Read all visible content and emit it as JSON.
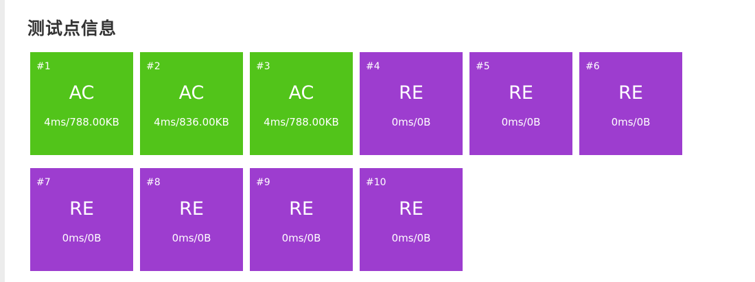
{
  "title": "测试点信息",
  "colors": {
    "AC": "#52c41a",
    "RE": "#9d3dcf"
  },
  "cases": [
    {
      "num": "#1",
      "status": "AC",
      "info": "4ms/788.00KB"
    },
    {
      "num": "#2",
      "status": "AC",
      "info": "4ms/836.00KB"
    },
    {
      "num": "#3",
      "status": "AC",
      "info": "4ms/788.00KB"
    },
    {
      "num": "#4",
      "status": "RE",
      "info": "0ms/0B"
    },
    {
      "num": "#5",
      "status": "RE",
      "info": "0ms/0B"
    },
    {
      "num": "#6",
      "status": "RE",
      "info": "0ms/0B"
    },
    {
      "num": "#7",
      "status": "RE",
      "info": "0ms/0B"
    },
    {
      "num": "#8",
      "status": "RE",
      "info": "0ms/0B"
    },
    {
      "num": "#9",
      "status": "RE",
      "info": "0ms/0B"
    },
    {
      "num": "#10",
      "status": "RE",
      "info": "0ms/0B"
    }
  ]
}
